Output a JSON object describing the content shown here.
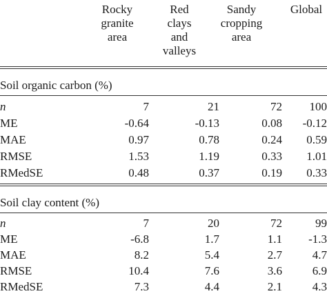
{
  "header": {
    "col1": "Rocky\ngranite\narea",
    "col2": "Red\nclays\nand\nvalleys",
    "col3": "Sandy\ncropping\narea",
    "col4": "Global"
  },
  "sections": [
    {
      "title": "Soil organic carbon (%)",
      "rows": [
        {
          "label": "n",
          "values": [
            "7",
            "21",
            "72",
            "100"
          ]
        },
        {
          "label": "ME",
          "values": [
            "-0.64",
            "-0.13",
            "0.08",
            "-0.12"
          ]
        },
        {
          "label": "MAE",
          "values": [
            "0.97",
            "0.78",
            "0.24",
            "0.59"
          ]
        },
        {
          "label": "RMSE",
          "values": [
            "1.53",
            "1.19",
            "0.33",
            "1.01"
          ]
        },
        {
          "label": "RMedSE",
          "values": [
            "0.48",
            "0.37",
            "0.19",
            "0.33"
          ]
        }
      ]
    },
    {
      "title": "Soil clay content (%)",
      "rows": [
        {
          "label": "n",
          "values": [
            "7",
            "20",
            "72",
            "99"
          ]
        },
        {
          "label": "ME",
          "values": [
            "-6.8",
            "1.7",
            "1.1",
            "-1.3"
          ]
        },
        {
          "label": "MAE",
          "values": [
            "8.2",
            "5.4",
            "2.7",
            "4.7"
          ]
        },
        {
          "label": "RMSE",
          "values": [
            "10.4",
            "7.6",
            "3.6",
            "6.9"
          ]
        },
        {
          "label": "RMedSE",
          "values": [
            "7.3",
            "4.4",
            "2.1",
            "4.3"
          ]
        }
      ]
    }
  ]
}
